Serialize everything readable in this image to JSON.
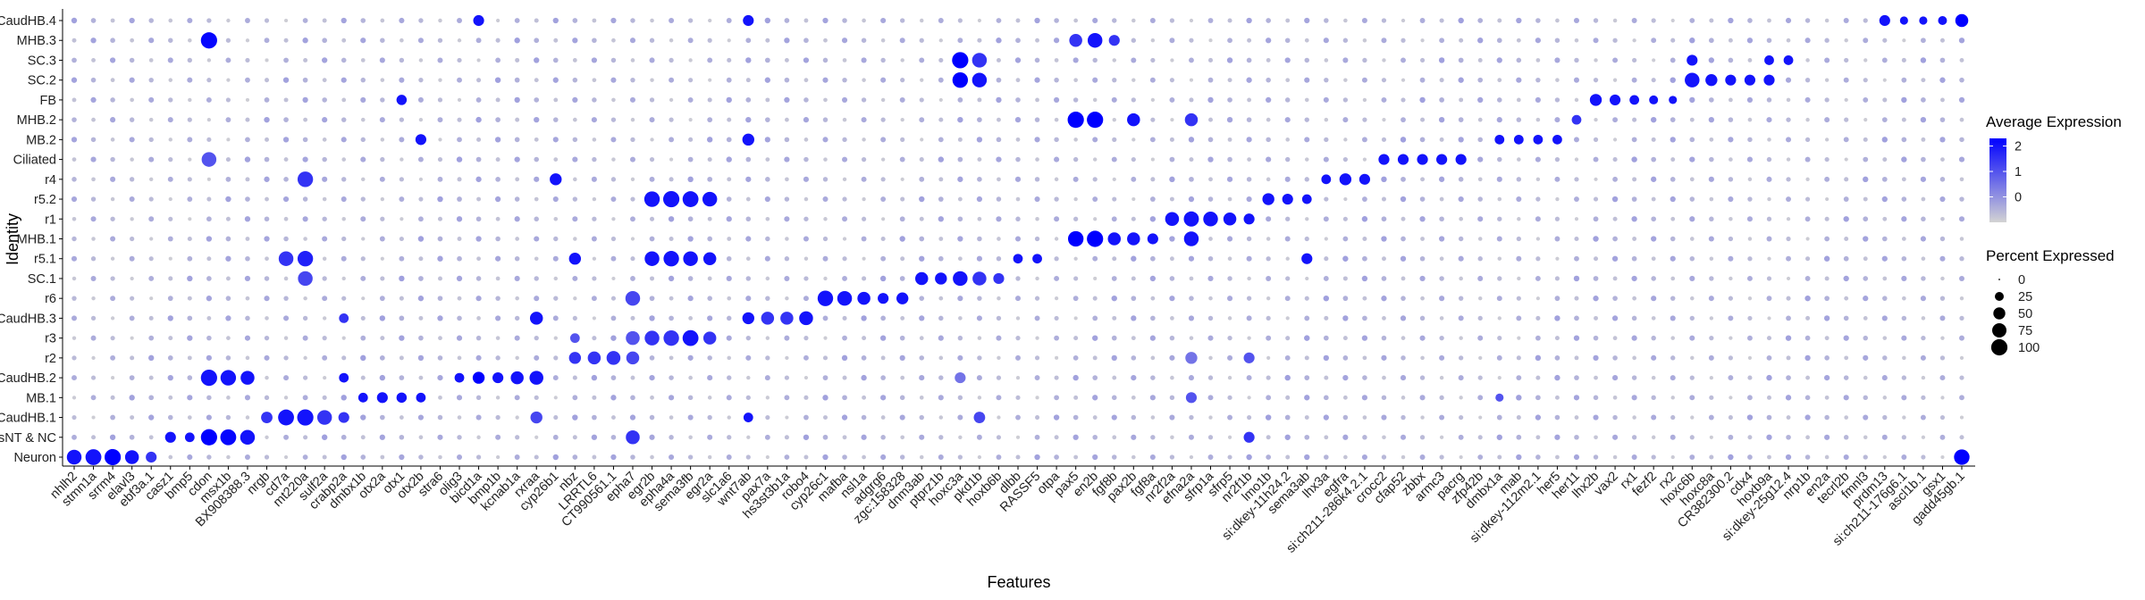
{
  "chart_data": {
    "type": "dotplot",
    "xlabel": "Features",
    "ylabel": "Identity",
    "identities": [
      "Neuron",
      "DorsNT & NC",
      "CaudHB.1",
      "MB.1",
      "CaudHB.2",
      "r2",
      "r3",
      "CaudHB.3",
      "r6",
      "SC.1",
      "r5.1",
      "MHB.1",
      "r1",
      "r5.2",
      "r4",
      "Ciliated",
      "MB.2",
      "MHB.2",
      "FB",
      "SC.2",
      "SC.3",
      "MHB.3",
      "CaudHB.4"
    ],
    "features": [
      "nhlh2",
      "stmn1a",
      "srrm4",
      "elavl3",
      "ebf3a.1",
      "casz1",
      "bmp5",
      "cdon",
      "msx1b",
      "BX908388.3",
      "nrgb",
      "cd7a",
      "mt220a",
      "sulf2a",
      "crabp2a",
      "dmbx1b",
      "otx2a",
      "otx1",
      "otx2b",
      "stra6",
      "olig3",
      "bicd1a",
      "bmp1b",
      "kcnab1a",
      "rxraa",
      "cyp26b1",
      "nbz",
      "LRRTL6",
      "CT990561.1",
      "epha7",
      "egr2b",
      "epha4a",
      "sema3fb",
      "egr2a",
      "slc1a6",
      "wnt7ab",
      "pax7a",
      "hs3st3b1a",
      "robo4",
      "cyp26c1",
      "mafba",
      "nsl1a",
      "adgrg6",
      "zgc:158328",
      "dnm3ab",
      "ptprz1b",
      "hoxc3a",
      "pkd1b",
      "hoxb6b",
      "dlbb",
      "RASSF5",
      "otpa",
      "pax5",
      "en2b",
      "fgf8b",
      "pax2b",
      "fgf8a",
      "nr2f2a",
      "efna2a",
      "sfrp1a",
      "sfrp5",
      "nr2f1b",
      "lmo1b",
      "si:dkey-11h24.2",
      "sema3ab",
      "lhx3a",
      "egfra",
      "si:ch211-286k4.2.1",
      "crocc2",
      "cfap52",
      "zbbx",
      "armc3",
      "pacrg",
      "zfp42b",
      "dmbx1a",
      "mab",
      "si:dkey-112m2.1",
      "her5",
      "her11",
      "lhx2b",
      "vax2",
      "rx1",
      "fezf2",
      "rx2",
      "hoxc6b",
      "hoxc8a",
      "CR382300.2",
      "cdx4",
      "hoxb9a",
      "si:dkey-25g12.4",
      "nrp1b",
      "en2a",
      "tecrl2b",
      "fmnl3",
      "prdm13",
      "si:ch211-176g6.1",
      "ascl1b.1",
      "gsx1",
      "gadd45gb.1"
    ],
    "avg_expression_range": [
      -1,
      2.3
    ],
    "avg_expression_ticks": [
      2,
      1,
      0
    ],
    "percent_ticks": [
      0,
      25,
      50,
      75,
      100
    ],
    "color_low": "#d3d3d3",
    "color_high": "#0000ff",
    "points": [
      [
        "Neuron",
        "nhlh2",
        80,
        2
      ],
      [
        "Neuron",
        "stmn1a",
        95,
        2
      ],
      [
        "Neuron",
        "srrm4",
        100,
        2.3
      ],
      [
        "Neuron",
        "elavl3",
        70,
        2
      ],
      [
        "Neuron",
        "ebf3a.1",
        40,
        1.5
      ],
      [
        "Neuron",
        "gadd45gb.1",
        90,
        2.3
      ],
      [
        "DorsNT & NC",
        "casz1",
        40,
        2
      ],
      [
        "DorsNT & NC",
        "bmp5",
        30,
        2
      ],
      [
        "DorsNT & NC",
        "cdon",
        100,
        2.3
      ],
      [
        "DorsNT & NC",
        "msx1b",
        95,
        2.2
      ],
      [
        "DorsNT & NC",
        "BX908388.3",
        80,
        2
      ],
      [
        "DorsNT & NC",
        "epha7",
        70,
        1.5
      ],
      [
        "DorsNT & NC",
        "nr2f1b",
        40,
        1.5
      ],
      [
        "CaudHB.1",
        "nrgb",
        45,
        1.5
      ],
      [
        "CaudHB.1",
        "cd7a",
        95,
        2
      ],
      [
        "CaudHB.1",
        "mt220a",
        100,
        2
      ],
      [
        "CaudHB.1",
        "sulf2a",
        80,
        1.5
      ],
      [
        "CaudHB.1",
        "crabp2a",
        40,
        1.5
      ],
      [
        "CaudHB.1",
        "rxraa",
        50,
        1.2
      ],
      [
        "CaudHB.1",
        "wnt7ab",
        30,
        2
      ],
      [
        "CaudHB.1",
        "pkd1b",
        45,
        1.2
      ],
      [
        "MB.1",
        "dmbx1b",
        30,
        2
      ],
      [
        "MB.1",
        "otx2a",
        40,
        2
      ],
      [
        "MB.1",
        "otx1",
        35,
        2
      ],
      [
        "MB.1",
        "otx2b",
        30,
        2
      ],
      [
        "MB.1",
        "efna2a",
        40,
        1
      ],
      [
        "MB.1",
        "dmbx1a",
        20,
        1
      ],
      [
        "CaudHB.2",
        "cdon",
        100,
        2
      ],
      [
        "CaudHB.2",
        "msx1b",
        90,
        2
      ],
      [
        "CaudHB.2",
        "BX908388.3",
        70,
        2
      ],
      [
        "CaudHB.2",
        "olig3",
        30,
        2
      ],
      [
        "CaudHB.2",
        "bicd1a",
        50,
        2.3
      ],
      [
        "CaudHB.2",
        "bmp1b",
        40,
        2
      ],
      [
        "CaudHB.2",
        "kcnab1a",
        60,
        2
      ],
      [
        "CaudHB.2",
        "rxraa",
        70,
        2
      ],
      [
        "CaudHB.2",
        "crabp2a",
        30,
        2
      ],
      [
        "CaudHB.2",
        "hoxc3a",
        40,
        0.5
      ],
      [
        "r2",
        "nbz",
        50,
        1.5
      ],
      [
        "r2",
        "LRRTL6",
        60,
        1.5
      ],
      [
        "r2",
        "CT990561.1",
        70,
        1.5
      ],
      [
        "r2",
        "epha7",
        60,
        1.2
      ],
      [
        "r2",
        "efna2a",
        50,
        0.5
      ],
      [
        "r2",
        "nr2f1b",
        40,
        1
      ],
      [
        "r3",
        "nbz",
        30,
        1
      ],
      [
        "r3",
        "egr2b",
        80,
        1.5
      ],
      [
        "r3",
        "epha4a",
        90,
        1.5
      ],
      [
        "r3",
        "sema3fb",
        95,
        2
      ],
      [
        "r3",
        "egr2a",
        60,
        1.5
      ],
      [
        "r3",
        "epha7",
        70,
        1
      ],
      [
        "CaudHB.3",
        "wnt7ab",
        50,
        2
      ],
      [
        "CaudHB.3",
        "pax7a",
        60,
        1.5
      ],
      [
        "CaudHB.3",
        "hs3st3b1a",
        60,
        1.5
      ],
      [
        "CaudHB.3",
        "robo4",
        70,
        2
      ],
      [
        "CaudHB.3",
        "rxraa",
        60,
        2
      ],
      [
        "CaudHB.3",
        "crabp2a",
        30,
        1.5
      ],
      [
        "r6",
        "cyp26c1",
        90,
        2
      ],
      [
        "r6",
        "mafba",
        80,
        2
      ],
      [
        "r6",
        "nsl1a",
        60,
        2
      ],
      [
        "r6",
        "adgrg6",
        40,
        2
      ],
      [
        "r6",
        "zgc:158328",
        50,
        2
      ],
      [
        "r6",
        "epha7",
        80,
        1.2
      ],
      [
        "SC.1",
        "ptprz1b",
        50,
        2
      ],
      [
        "SC.1",
        "hoxc3a",
        80,
        2
      ],
      [
        "SC.1",
        "pkd1b",
        70,
        1.5
      ],
      [
        "SC.1",
        "dnm3ab",
        60,
        2
      ],
      [
        "SC.1",
        "hoxb6b",
        40,
        1.5
      ],
      [
        "SC.1",
        "mt220a",
        80,
        1.2
      ],
      [
        "r5.1",
        "cd7a",
        80,
        1.5
      ],
      [
        "r5.1",
        "mt220a",
        90,
        1.8
      ],
      [
        "r5.1",
        "nbz",
        50,
        2
      ],
      [
        "r5.1",
        "egr2b",
        80,
        2
      ],
      [
        "r5.1",
        "epha4a",
        90,
        2
      ],
      [
        "r5.1",
        "sema3fb",
        80,
        2
      ],
      [
        "r5.1",
        "egr2a",
        60,
        2
      ],
      [
        "r5.1",
        "dlbb",
        30,
        2
      ],
      [
        "r5.1",
        "RASSF5",
        30,
        2
      ],
      [
        "r5.1",
        "sema3ab",
        40,
        2
      ],
      [
        "MHB.1",
        "pax5",
        90,
        2.3
      ],
      [
        "MHB.1",
        "en2b",
        100,
        2.3
      ],
      [
        "MHB.1",
        "fgf8b",
        60,
        2
      ],
      [
        "MHB.1",
        "pax2b",
        60,
        2
      ],
      [
        "MHB.1",
        "fgf8a",
        40,
        2
      ],
      [
        "MHB.1",
        "efna2a",
        80,
        2
      ],
      [
        "r1",
        "nr2f2a",
        70,
        2
      ],
      [
        "r1",
        "efna2a",
        85,
        2
      ],
      [
        "r1",
        "sfrp1a",
        80,
        2
      ],
      [
        "r1",
        "sfrp5",
        60,
        2
      ],
      [
        "r1",
        "nr2f1b",
        40,
        2
      ],
      [
        "r5.2",
        "egr2b",
        90,
        2
      ],
      [
        "r5.2",
        "epha4a",
        100,
        2
      ],
      [
        "r5.2",
        "sema3fb",
        95,
        2
      ],
      [
        "r5.2",
        "egr2a",
        80,
        2
      ],
      [
        "r5.2",
        "lmo1b",
        50,
        2
      ],
      [
        "r5.2",
        "si:dkey-11h24.2",
        40,
        2
      ],
      [
        "r5.2",
        "sema3ab",
        30,
        2
      ],
      [
        "r4",
        "cyp26b1",
        50,
        2
      ],
      [
        "r4",
        "mt220a",
        90,
        1.5
      ],
      [
        "r4",
        "lhx3a",
        30,
        2
      ],
      [
        "r4",
        "egfra",
        50,
        2
      ],
      [
        "r4",
        "si:ch211-286k4.2.1",
        40,
        2
      ],
      [
        "Ciliated",
        "crocc2",
        40,
        2
      ],
      [
        "Ciliated",
        "cfap52",
        40,
        2
      ],
      [
        "Ciliated",
        "zbbx",
        40,
        2
      ],
      [
        "Ciliated",
        "armc3",
        40,
        2
      ],
      [
        "Ciliated",
        "pacrg",
        40,
        2
      ],
      [
        "Ciliated",
        "cdon",
        80,
        1
      ],
      [
        "MB.2",
        "dmbx1a",
        30,
        2
      ],
      [
        "MB.2",
        "mab",
        30,
        2
      ],
      [
        "MB.2",
        "si:dkey-112m2.1",
        30,
        2
      ],
      [
        "MB.2",
        "her5",
        30,
        2
      ],
      [
        "MB.2",
        "wnt7ab",
        50,
        2
      ],
      [
        "MB.2",
        "otx2b",
        40,
        2
      ],
      [
        "MHB.2",
        "pax5",
        100,
        2.3
      ],
      [
        "MHB.2",
        "en2b",
        100,
        2.3
      ],
      [
        "MHB.2",
        "pax2b",
        60,
        2
      ],
      [
        "MHB.2",
        "efna2a",
        60,
        1.5
      ],
      [
        "MHB.2",
        "her11",
        30,
        1.5
      ],
      [
        "FB",
        "lhx2b",
        50,
        2
      ],
      [
        "FB",
        "vax2",
        40,
        2
      ],
      [
        "FB",
        "rx1",
        30,
        2
      ],
      [
        "FB",
        "fezf2",
        25,
        2
      ],
      [
        "FB",
        "rx2",
        20,
        2
      ],
      [
        "FB",
        "otx1",
        35,
        2
      ],
      [
        "SC.2",
        "hoxc6b",
        80,
        2
      ],
      [
        "SC.2",
        "hoxc8a",
        50,
        2
      ],
      [
        "SC.2",
        "CR382300.2",
        40,
        2
      ],
      [
        "SC.2",
        "cdx4",
        40,
        2
      ],
      [
        "SC.2",
        "hoxb9a",
        40,
        2
      ],
      [
        "SC.2",
        "hoxc3a",
        90,
        2.3
      ],
      [
        "SC.2",
        "pkd1b",
        80,
        2
      ],
      [
        "SC.3",
        "hoxc6b",
        40,
        2
      ],
      [
        "SC.3",
        "hoxc3a",
        100,
        2.3
      ],
      [
        "SC.3",
        "pkd1b",
        80,
        1.5
      ],
      [
        "SC.3",
        "hoxb9a",
        30,
        2
      ],
      [
        "SC.3",
        "si:dkey-25g12.4",
        30,
        2
      ],
      [
        "MHB.3",
        "cdon",
        100,
        2.2
      ],
      [
        "MHB.3",
        "pax5",
        60,
        1.5
      ],
      [
        "MHB.3",
        "en2b",
        80,
        2
      ],
      [
        "MHB.3",
        "fgf8b",
        40,
        1.5
      ],
      [
        "CaudHB.4",
        "prdm13",
        40,
        2
      ],
      [
        "CaudHB.4",
        "si:ch211-176g6.1",
        20,
        2
      ],
      [
        "CaudHB.4",
        "ascl1b.1",
        20,
        2
      ],
      [
        "CaudHB.4",
        "gsx1",
        25,
        2
      ],
      [
        "CaudHB.4",
        "gadd45gb.1",
        60,
        2.3
      ],
      [
        "CaudHB.4",
        "bicd1a",
        40,
        2
      ],
      [
        "CaudHB.4",
        "wnt7ab",
        40,
        2
      ]
    ]
  }
}
